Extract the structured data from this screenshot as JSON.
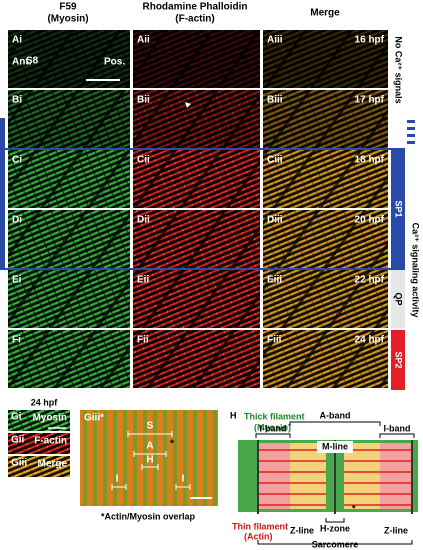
{
  "headers": [
    [
      "F59",
      "(Myosin)"
    ],
    [
      "Rhodamine Phalloidin",
      "(F-actin)"
    ],
    [
      "Merge"
    ]
  ],
  "rows": [
    {
      "panels": [
        "Ai",
        "Aii",
        "Aiii"
      ],
      "time": "16 hpf"
    },
    {
      "panels": [
        "Bi",
        "Bii",
        "Biii"
      ],
      "time": "17 hpf"
    },
    {
      "panels": [
        "Ci",
        "Cii",
        "Ciii"
      ],
      "time": "18 hpf"
    },
    {
      "panels": [
        "Di",
        "Dii",
        "Diii"
      ],
      "time": "20 hpf"
    },
    {
      "panels": [
        "Ei",
        "Eii",
        "Eiii"
      ],
      "time": "22 hpf"
    },
    {
      "panels": [
        "Fi",
        "Fii",
        "Fiii"
      ],
      "time": "24 hpf"
    }
  ],
  "annotations": {
    "stage": "S8",
    "anterior": "Ant.",
    "posterior": "Pos."
  },
  "side": {
    "no_signal": "No Ca²⁺ signals",
    "activity": "Ca²⁺ signaling activity",
    "phases": [
      "SP1",
      "QP",
      "SP2"
    ]
  },
  "panel_g": {
    "time": "24 hpf",
    "strips": [
      {
        "id": "Gi",
        "stain": "Myosin"
      },
      {
        "id": "Gii",
        "stain": "F-actin"
      },
      {
        "id": "Giii",
        "stain": "Merge"
      }
    ],
    "zoom": {
      "id": "Giii*",
      "labels": [
        "S",
        "A",
        "H",
        "I",
        "I"
      ],
      "star": "*"
    },
    "caption": "*Actin/Myosin overlap"
  },
  "panel_h": {
    "id": "H",
    "thick": [
      "Thick filament",
      "(Myosin)"
    ],
    "thin": [
      "Thin filament",
      "(Actin)"
    ],
    "a_band": "A-band",
    "i_band": [
      "I-band",
      "I-band"
    ],
    "m_line": "M-line",
    "h_zone": "H-zone",
    "star": "*",
    "z_line": [
      "Z-line",
      "Z-line"
    ],
    "sarcomere": "Sarcomere"
  }
}
